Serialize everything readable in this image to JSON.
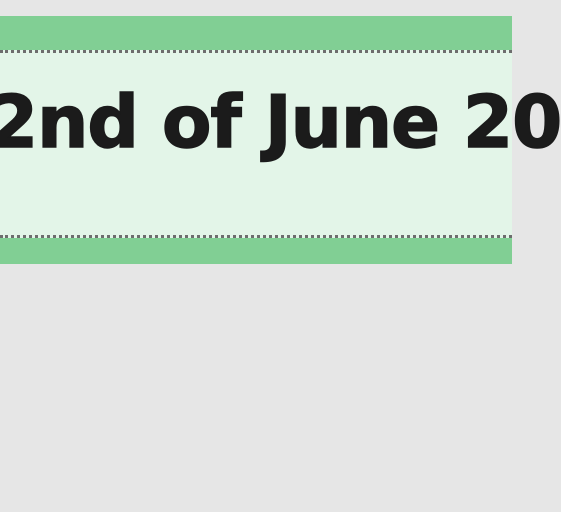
{
  "banner": {
    "date_text": "2nd of June 20",
    "colors": {
      "outer_band": "#81cf94",
      "inner_panel": "#e3f5e8",
      "stitch": "#6d6d6d",
      "text": "#1b1b1b",
      "background": "#e6e6e6"
    }
  }
}
